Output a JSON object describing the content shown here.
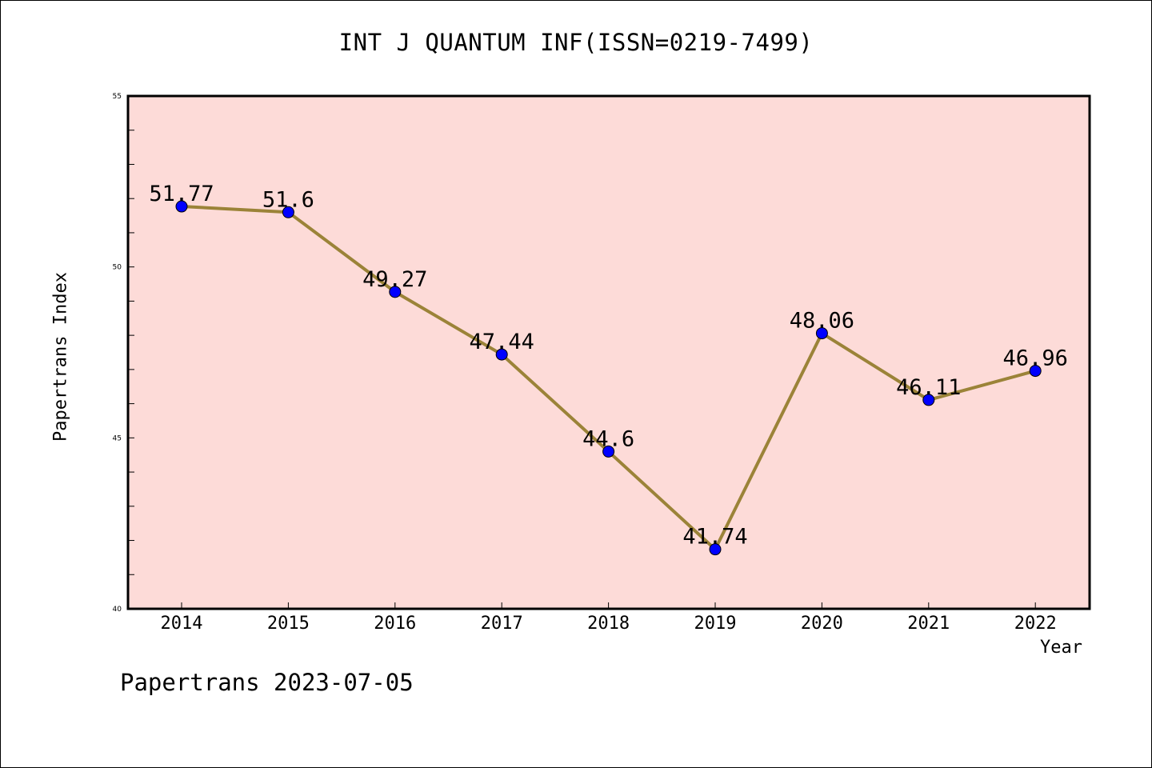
{
  "chart_data": {
    "type": "line",
    "title": "INT J QUANTUM INF(ISSN=0219-7499)",
    "xlabel": "Year",
    "ylabel": "Papertrans Index",
    "categories": [
      "2014",
      "2015",
      "2016",
      "2017",
      "2018",
      "2019",
      "2020",
      "2021",
      "2022"
    ],
    "series": [
      {
        "values": [
          51.77,
          51.6,
          49.27,
          47.44,
          44.6,
          41.74,
          48.06,
          46.11,
          46.96
        ]
      }
    ],
    "data_labels": [
      "51.77",
      "51.6",
      "49.27",
      "47.44",
      "44.6",
      "41.74",
      "48.06",
      "46.11",
      "46.96"
    ],
    "ylim": [
      40,
      55
    ],
    "yticks": [
      "40",
      "45",
      "50",
      "55"
    ],
    "grid": false,
    "colors": {
      "plot_background": "#fddbd8",
      "line": "#9b8338",
      "marker": "#0000ff"
    }
  },
  "footer": {
    "text": "Papertrans 2023-07-05"
  }
}
